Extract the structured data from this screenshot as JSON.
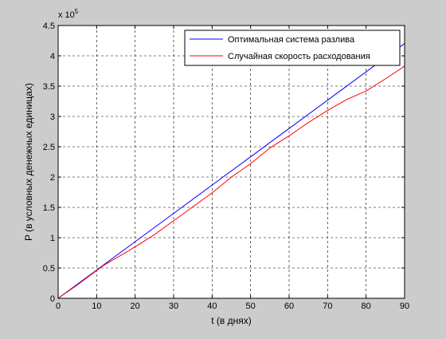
{
  "figure": {
    "background": "#cccccc",
    "axes_background": "#ffffff"
  },
  "chart_data": {
    "type": "line",
    "title": "",
    "xlabel": "t (в днях)",
    "ylabel": "P (в условных денежных единицах)",
    "xlim": [
      0,
      90
    ],
    "ylim": [
      0,
      450000
    ],
    "y_exponent_label": "x 10",
    "y_exponent_power": "5",
    "x_ticks": [
      0,
      10,
      20,
      30,
      40,
      50,
      60,
      70,
      80,
      90
    ],
    "x_tick_labels": [
      "0",
      "10",
      "20",
      "30",
      "40",
      "50",
      "60",
      "70",
      "80",
      "90"
    ],
    "y_ticks": [
      0,
      50000,
      100000,
      150000,
      200000,
      250000,
      300000,
      350000,
      400000,
      450000
    ],
    "y_tick_labels": [
      "0",
      "0.5",
      "1",
      "1.5",
      "2",
      "2.5",
      "3",
      "3.5",
      "4",
      "4.5"
    ],
    "grid": true,
    "grid_style": "dashed",
    "legend_position": "top-right",
    "series": [
      {
        "name": "Оптимальная система разлива",
        "color": "#0000ff",
        "x": [
          0,
          10,
          20,
          30,
          40,
          50,
          60,
          70,
          80,
          90
        ],
        "y": [
          0,
          46700,
          93400,
          140100,
          186800,
          233500,
          280200,
          326900,
          373600,
          420300
        ]
      },
      {
        "name": "Случайная скорость расходования",
        "color": "#ff0000",
        "x": [
          0,
          5,
          10,
          12,
          15,
          20,
          25,
          30,
          35,
          40,
          45,
          50,
          55,
          60,
          65,
          70,
          75,
          80,
          85,
          90
        ],
        "y": [
          0,
          22000,
          46000,
          55000,
          66000,
          85000,
          105000,
          128000,
          151000,
          174000,
          200000,
          222000,
          248000,
          268000,
          290000,
          310000,
          328000,
          342000,
          362000,
          383000
        ]
      }
    ]
  }
}
